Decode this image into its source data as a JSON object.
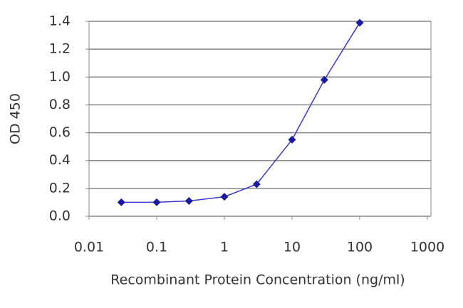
{
  "chart_data": {
    "type": "line",
    "x_label": "Recombinant Protein Concentration (ng/ml)",
    "y_label": "OD 450",
    "xscale": "log",
    "grid": true,
    "x": [
      0.03,
      0.1,
      0.3,
      1,
      3,
      10,
      30,
      100
    ],
    "series": [
      {
        "color": "#1a1aa0",
        "values": [
          0.1,
          0.1,
          0.11,
          0.14,
          0.23,
          0.55,
          0.98,
          1.39
        ]
      }
    ],
    "xlim": [
      0.01,
      1000
    ],
    "xticks": [
      0.01,
      0.1,
      1,
      10,
      100,
      1000
    ],
    "ylim": [
      0,
      1.4
    ],
    "yticks": [
      {
        "value": 0,
        "label": "0.0"
      },
      0.2,
      0.4,
      0.6,
      0.8,
      {
        "value": 1,
        "label": "1.0"
      },
      1.2,
      1.4
    ]
  }
}
